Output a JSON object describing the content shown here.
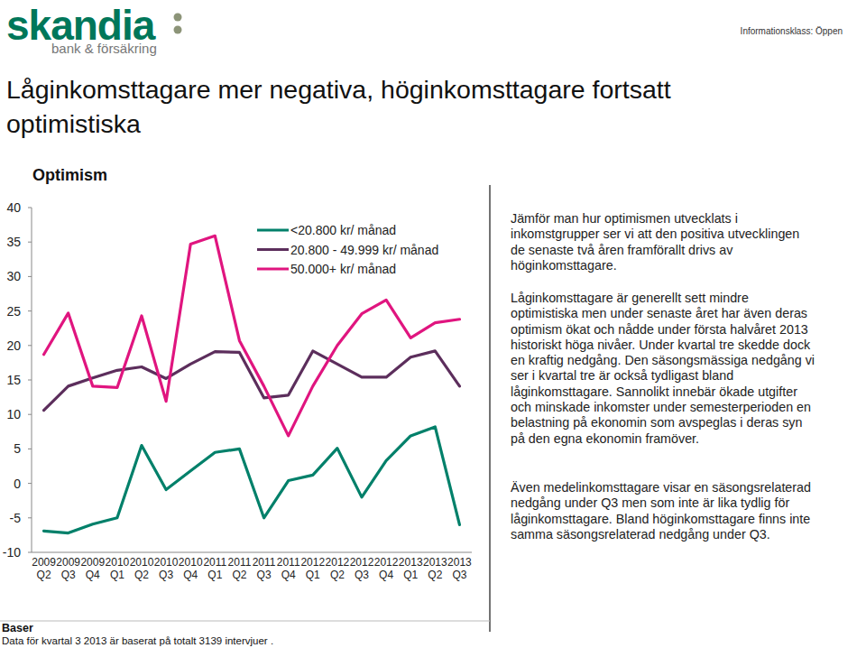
{
  "page": {
    "logo": "skandia",
    "logo_tagline": "bank & försäkring",
    "classification": "Informationsklass: Öppen",
    "title_lines": [
      "Låginkomsttagare mer negativa, höginkomsttagare fortsatt",
      "optimistiska"
    ],
    "paragraphs": [
      "Jämför man hur optimismen utvecklats i inkomstgrupper ser vi att den positiva utvecklingen de senaste två åren framförallt drivs av höginkomsttagare.",
      "Låginkomsttagare är generellt sett mindre optimistiska men under senaste året har även deras optimism ökat och nådde under första halvåret 2013 historiskt höga nivåer. Under kvartal tre skedde dock en kraftig nedgång. Den säsongsmässiga nedgång vi ser i kvartal tre är också tydligast bland låginkomsttagare. Sannolikt innebär ökade utgifter och minskade inkomster under semesterperioden en belastning på ekonomin som avspeglas i deras syn på den egna ekonomin framöver.",
      "Även medelinkomsttagare visar en säsongsrelaterad nedgång under Q3 men som inte är lika tydlig för låginkomsttagare. Bland höginkomsttagare finns inte samma säsongsrelaterad nedgång under Q3."
    ],
    "footer_heading": "Baser",
    "footer_text": "Data för kvartal 3 2013 är baserat på totalt 3139 intervjuer ."
  },
  "chart_data": {
    "type": "line",
    "title": "Optimism",
    "categories": [
      "2009 Q2",
      "2009 Q3",
      "2009 Q4",
      "2010 Q1",
      "2010 Q2",
      "2010 Q3",
      "2010 Q4",
      "2011 Q1",
      "2011 Q2",
      "2011 Q3",
      "2011 Q4",
      "2012 Q1",
      "2012 Q2",
      "2012 Q3",
      "2012 Q4",
      "2013 Q1",
      "2013 Q2",
      "2013 Q3"
    ],
    "series": [
      {
        "name": "<20.800 kr/ månad",
        "color": "#00806a",
        "values": [
          -6.9,
          -7.2,
          -5.9,
          -5.0,
          5.5,
          -0.9,
          1.8,
          4.5,
          5.0,
          -5.0,
          0.4,
          1.2,
          5.1,
          -2.0,
          3.3,
          6.9,
          8.2,
          -6.0
        ]
      },
      {
        "name": "20.800 - 49.999 kr/ månad",
        "color": "#5c2e5c",
        "values": [
          10.6,
          14.1,
          15.3,
          16.4,
          16.9,
          15.2,
          17.3,
          19.1,
          19.0,
          12.4,
          12.8,
          19.2,
          17.3,
          15.4,
          15.4,
          18.3,
          19.2,
          14.1
        ]
      },
      {
        "name": "50.000+ kr/ månad",
        "color": "#e0157f",
        "values": [
          18.7,
          24.7,
          14.1,
          13.9,
          24.3,
          11.9,
          34.7,
          35.9,
          20.7,
          14.1,
          6.9,
          14.1,
          20.0,
          24.6,
          26.6,
          21.1,
          23.3,
          23.8
        ]
      }
    ],
    "ylim": [
      -10,
      40
    ],
    "yticks": [
      -10,
      -5,
      0,
      5,
      10,
      15,
      20,
      25,
      30,
      35,
      40
    ],
    "grid": false,
    "legend": "upper right"
  }
}
